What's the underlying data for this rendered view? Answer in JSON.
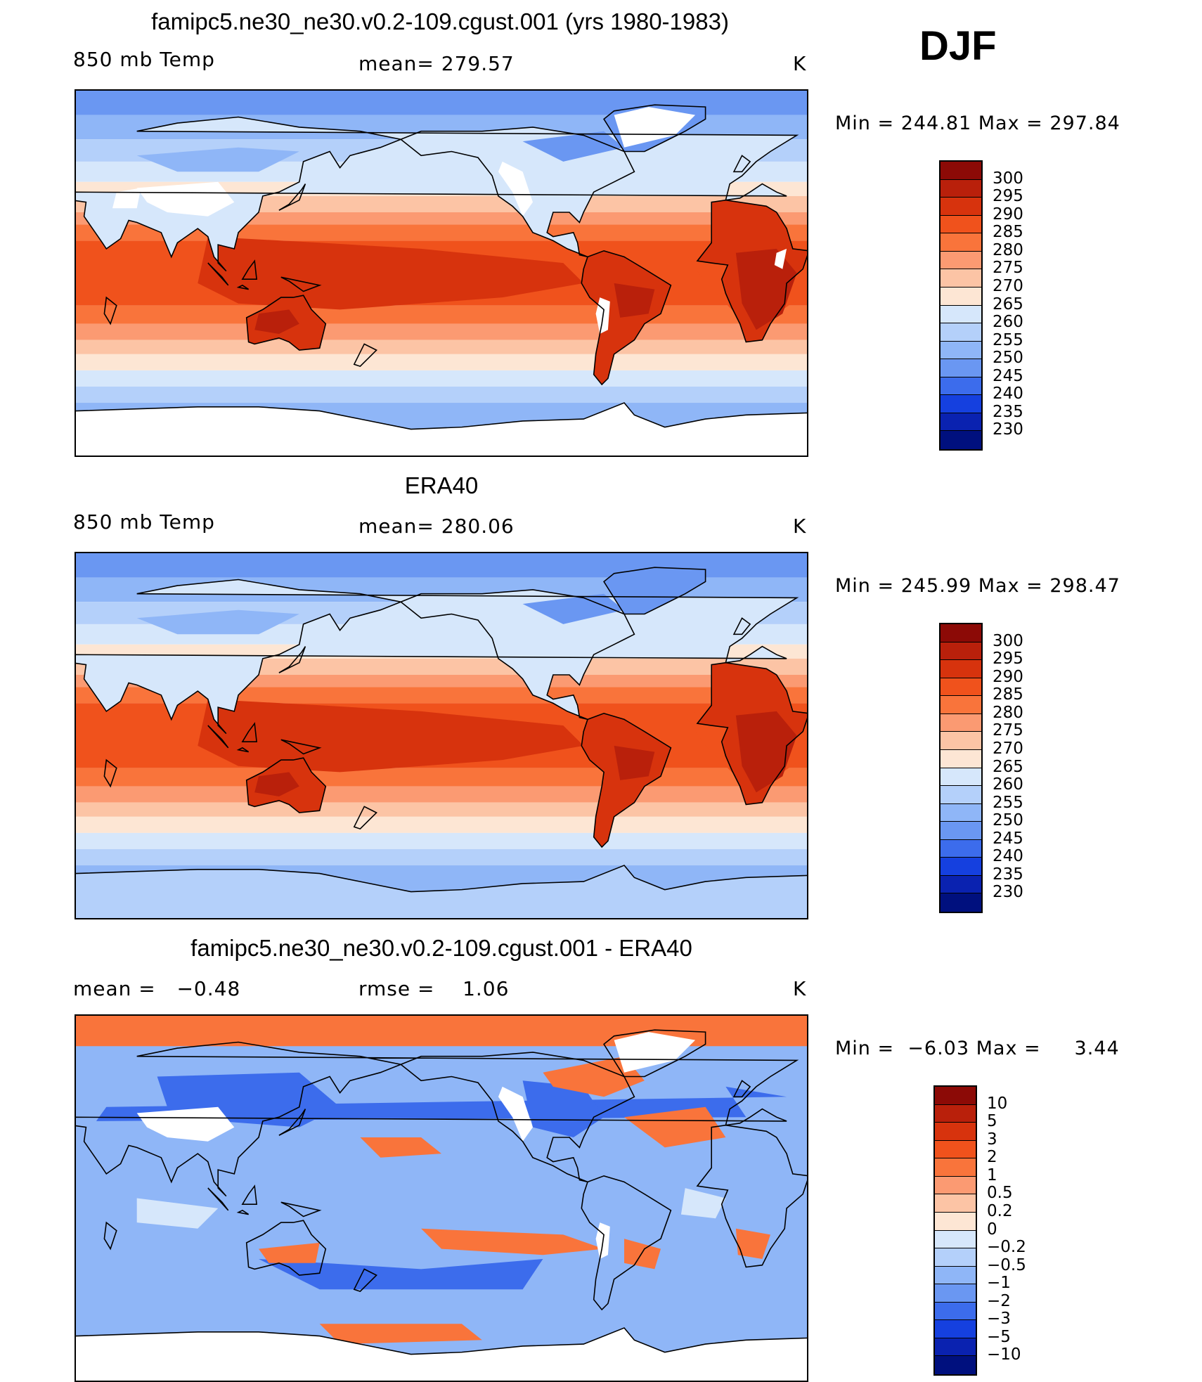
{
  "season": "DJF",
  "panels": [
    {
      "title": "famipc5.ne30_ne30.v0.2-109.cgust.001 (yrs 1980-1983)",
      "left_label": "850 mb Temp",
      "center_label": "mean= 279.57",
      "units": "K",
      "minmax": "Min = 244.81 Max = 297.84",
      "has_missing": true,
      "type": "abs"
    },
    {
      "title": "ERA40",
      "left_label": "850 mb Temp",
      "center_label": "mean= 280.06",
      "units": "K",
      "minmax": "Min = 245.99 Max = 298.47",
      "has_missing": false,
      "type": "abs"
    },
    {
      "title": "famipc5.ne30_ne30.v0.2-109.cgust.001 - ERA40",
      "left_label": "mean =   −0.48",
      "center_label": "rmse =    1.06",
      "units": "K",
      "minmax": "Min =  −6.03 Max =     3.44",
      "has_missing": true,
      "type": "diff"
    }
  ],
  "colorbar_abs": {
    "labels": [
      "300",
      "295",
      "290",
      "285",
      "280",
      "275",
      "270",
      "265",
      "260",
      "255",
      "250",
      "245",
      "240",
      "235",
      "230"
    ],
    "colors": [
      "#8c0a06",
      "#b9200b",
      "#d7330d",
      "#f0521c",
      "#f9743b",
      "#fb9a72",
      "#fcc4a5",
      "#fde6d4",
      "#d6e7fb",
      "#b4d0fa",
      "#8fb6f7",
      "#6a97f2",
      "#3c6cec",
      "#1540df",
      "#0a22b0",
      "#00107e"
    ]
  },
  "colorbar_diff": {
    "labels": [
      "10",
      "5",
      "3",
      "2",
      "1",
      "0.5",
      "0.2",
      "0",
      "−0.2",
      "−0.5",
      "−1",
      "−2",
      "−3",
      "−5",
      "−10"
    ],
    "colors": [
      "#8c0a06",
      "#b9200b",
      "#d7330d",
      "#f0521c",
      "#f9743b",
      "#fb9a72",
      "#fcc4a5",
      "#fde6d4",
      "#d6e7fb",
      "#b4d0fa",
      "#8fb6f7",
      "#6a97f2",
      "#3c6cec",
      "#1540df",
      "#0a22b0",
      "#00107e"
    ]
  },
  "map_icons": [
    "world-coastline-icon"
  ]
}
